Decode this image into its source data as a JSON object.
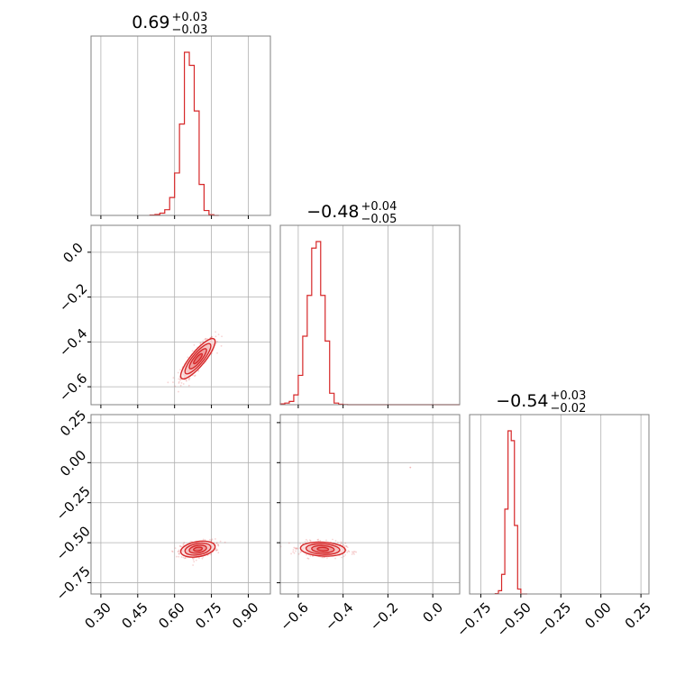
{
  "chart_data": {
    "type": "corner",
    "color": "#d62728",
    "grid": true,
    "parameters": [
      {
        "title": {
          "median": "0.69",
          "upper": "+0.03",
          "lower": "−0.03"
        },
        "range": [
          0.26,
          0.99
        ],
        "ticks": [
          {
            "value": 0.3,
            "label": "0.30"
          },
          {
            "value": 0.45,
            "label": "0.45"
          },
          {
            "value": 0.6,
            "label": "0.60"
          },
          {
            "value": 0.75,
            "label": "0.75"
          },
          {
            "value": 0.9,
            "label": "0.90"
          }
        ],
        "histogram": {
          "edges": [
            0.5,
            0.52,
            0.54,
            0.56,
            0.58,
            0.6,
            0.62,
            0.64,
            0.66,
            0.68,
            0.7,
            0.72,
            0.74,
            0.76,
            0.78
          ],
          "counts": [
            0.002,
            0.006,
            0.014,
            0.035,
            0.11,
            0.26,
            0.56,
            1.0,
            0.92,
            0.64,
            0.19,
            0.03,
            0.004,
            0.0
          ]
        }
      },
      {
        "title": {
          "median": "−0.48",
          "upper": "+0.04",
          "lower": "−0.05"
        },
        "range": [
          -0.68,
          0.12
        ],
        "ticks": [
          {
            "value": -0.6,
            "label": "−0.6"
          },
          {
            "value": -0.4,
            "label": "−0.4"
          },
          {
            "value": -0.2,
            "label": "−0.2"
          },
          {
            "value": 0.0,
            "label": "0.0"
          }
        ],
        "histogram": {
          "edges": [
            -0.68,
            -0.66,
            -0.64,
            -0.62,
            -0.6,
            -0.58,
            -0.56,
            -0.54,
            -0.52,
            -0.5,
            -0.48,
            -0.46,
            -0.44,
            -0.42,
            -0.4,
            -0.38,
            -0.36,
            0.12
          ],
          "counts": [
            0.005,
            0.01,
            0.02,
            0.06,
            0.18,
            0.42,
            0.67,
            0.96,
            1.0,
            0.67,
            0.39,
            0.07,
            0.01,
            0.003,
            0.001,
            0.0,
            0.0
          ]
        }
      },
      {
        "title": {
          "median": "−0.54",
          "upper": "+0.03",
          "lower": "−0.02"
        },
        "range": [
          -0.82,
          0.3
        ],
        "ticks": [
          {
            "value": -0.75,
            "label": "−0.75"
          },
          {
            "value": -0.5,
            "label": "−0.50"
          },
          {
            "value": -0.25,
            "label": "−0.25"
          },
          {
            "value": 0.0,
            "label": "0.00"
          },
          {
            "value": 0.25,
            "label": "0.25"
          }
        ],
        "histogram": {
          "edges": [
            -0.66,
            -0.64,
            -0.62,
            -0.6,
            -0.58,
            -0.56,
            -0.54,
            -0.52,
            -0.5,
            -0.48,
            -0.46
          ],
          "counts": [
            0.002,
            0.02,
            0.12,
            0.52,
            1.0,
            0.94,
            0.42,
            0.03,
            0.0,
            0.0
          ]
        }
      }
    ],
    "pairs": [
      {
        "x_param": 0,
        "y_param": 1,
        "center": [
          0.695,
          -0.475
        ],
        "sigma": [
          0.035,
          0.045
        ],
        "rho": 0.85,
        "contour_levels": [
          0.5,
          1.0,
          1.5,
          2.0
        ],
        "outlier": null
      },
      {
        "x_param": 0,
        "y_param": 2,
        "center": [
          0.695,
          -0.54
        ],
        "sigma": [
          0.035,
          0.025
        ],
        "rho": 0.3,
        "contour_levels": [
          0.5,
          1.0,
          1.5,
          2.0
        ],
        "outlier": null
      },
      {
        "x_param": 1,
        "y_param": 2,
        "center": [
          -0.49,
          -0.54
        ],
        "sigma": [
          0.05,
          0.022
        ],
        "rho": -0.15,
        "contour_levels": [
          0.5,
          1.0,
          1.5,
          2.0
        ],
        "outlier": [
          -0.1,
          -0.03
        ]
      }
    ]
  }
}
